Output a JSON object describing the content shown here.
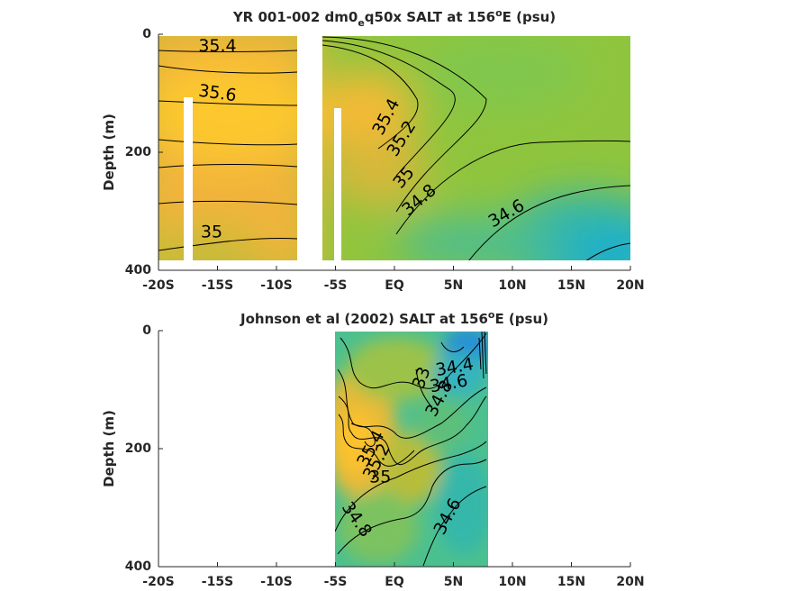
{
  "figure": {
    "background": "#ffffff"
  },
  "chart_data": [
    {
      "type": "heatmap",
      "title_prefix": "YR 001-002 dm0",
      "title_sub": "e",
      "title_mid": "q50x SALT at 156",
      "title_sup": "o",
      "title_suffix": "E (psu)",
      "ylabel": "Depth (m)",
      "xlim": [
        -20,
        20
      ],
      "ylim": [
        400,
        0
      ],
      "x_ticks": [
        -20,
        -15,
        -10,
        -5,
        0,
        5,
        10,
        15,
        20
      ],
      "x_tick_labels": [
        "-20S",
        "-15S",
        "-10S",
        "-5S",
        "EQ",
        "5N",
        "10N",
        "15N",
        "20N"
      ],
      "y_ticks": [
        0,
        200,
        400
      ],
      "y_tick_labels": [
        "0",
        "200",
        "400"
      ],
      "data_extent": {
        "x": [
          -20,
          20
        ],
        "y": [
          0,
          380
        ]
      },
      "gaps": [
        {
          "x": [
            -17.7,
            -17.0
          ],
          "y": [
            105,
            380
          ]
        },
        {
          "x": [
            -8.3,
            -6.5
          ],
          "y": [
            0,
            380
          ]
        },
        {
          "x": [
            -5.2,
            -4.6
          ],
          "y": [
            120,
            380
          ]
        }
      ],
      "contour_labels": [
        {
          "text": "35.4",
          "x": -15,
          "y": 20,
          "angle": 0
        },
        {
          "text": "35.6",
          "x": -15,
          "y": 100,
          "angle": 8
        },
        {
          "text": "35",
          "x": -15.5,
          "y": 335,
          "angle": 0
        },
        {
          "text": "35.4",
          "x": -0.7,
          "y": 140,
          "angle": -62
        },
        {
          "text": "35.2",
          "x": 0.6,
          "y": 177,
          "angle": -58
        },
        {
          "text": "35",
          "x": 0.8,
          "y": 243,
          "angle": -50
        },
        {
          "text": "34.8",
          "x": 2.1,
          "y": 281,
          "angle": -40
        },
        {
          "text": "34.6",
          "x": 9.5,
          "y": 304,
          "angle": -30
        }
      ],
      "colormap": "parula",
      "clim": [
        34.4,
        35.7
      ]
    },
    {
      "type": "heatmap",
      "title_prefix": "Johnson et al (2002) SALT at 156",
      "title_sup": "o",
      "title_suffix": "E (psu)",
      "ylabel": "Depth (m)",
      "xlim": [
        -20,
        20
      ],
      "ylim": [
        400,
        0
      ],
      "x_ticks": [
        -20,
        -15,
        -10,
        -5,
        0,
        5,
        10,
        15,
        20
      ],
      "x_tick_labels": [
        "-20S",
        "-15S",
        "-10S",
        "-5S",
        "EQ",
        "5N",
        "10N",
        "15N",
        "20N"
      ],
      "y_ticks": [
        0,
        200,
        400
      ],
      "y_tick_labels": [
        "0",
        "200",
        "400"
      ],
      "data_extent": {
        "x": [
          -5,
          8
        ],
        "y": [
          0,
          400
        ]
      },
      "contour_labels": [
        {
          "text": "34.4",
          "x": 5.1,
          "y": 62,
          "angle": -10
        },
        {
          "text": "34.6",
          "x": 4.6,
          "y": 90,
          "angle": -10
        },
        {
          "text": "34.8",
          "x": 3.8,
          "y": 115,
          "angle": -62
        },
        {
          "text": "33",
          "x": 2.3,
          "y": 80,
          "angle": -70
        },
        {
          "text": "35.4",
          "x": -2.0,
          "y": 200,
          "angle": -62
        },
        {
          "text": "35.2",
          "x": -1.5,
          "y": 222,
          "angle": -62
        },
        {
          "text": "35",
          "x": -1.2,
          "y": 248,
          "angle": 0
        },
        {
          "text": "34.8",
          "x": -3.2,
          "y": 320,
          "angle": 55
        },
        {
          "text": "34.6",
          "x": 4.5,
          "y": 315,
          "angle": -62
        }
      ],
      "colormap": "parula",
      "clim": [
        34.4,
        35.7
      ]
    }
  ]
}
